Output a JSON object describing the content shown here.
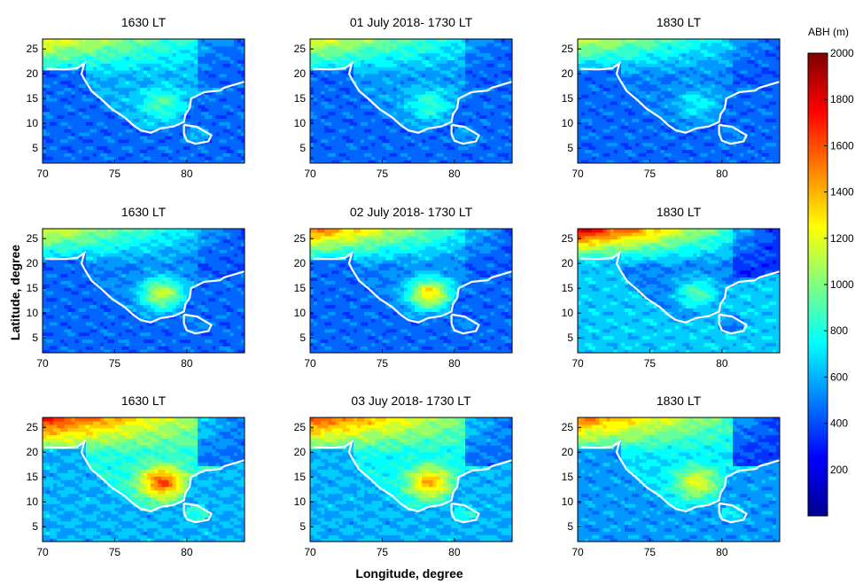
{
  "figure": {
    "xlabel": "Longitude, degree",
    "ylabel": "Latitude, degree"
  },
  "colorbar": {
    "label": "ABH (m)",
    "min": 0,
    "max": 2000,
    "colormap": "jet",
    "ticks": [
      200,
      400,
      600,
      800,
      1000,
      1200,
      1400,
      1600,
      1800,
      2000
    ]
  },
  "chart_data": [
    {
      "type": "heatmap",
      "title": "1630 LT",
      "xlim": [
        70,
        84
      ],
      "ylim": [
        2,
        27
      ],
      "xticks": [
        70,
        75,
        80
      ],
      "yticks": [
        5,
        10,
        15,
        20,
        25
      ],
      "field": {
        "sea": 450,
        "land": 600,
        "north_high": 1250,
        "southern_peninsula": 900,
        "east_interior": 400
      }
    },
    {
      "type": "heatmap",
      "title": "01 July 2018- 1730 LT",
      "xlim": [
        70,
        84
      ],
      "ylim": [
        2,
        27
      ],
      "xticks": [
        70,
        75,
        80
      ],
      "yticks": [
        5,
        10,
        15,
        20,
        25
      ],
      "field": {
        "sea": 450,
        "land": 550,
        "north_high": 1200,
        "southern_peninsula": 850,
        "east_interior": 400
      }
    },
    {
      "type": "heatmap",
      "title": "1830 LT",
      "xlim": [
        70,
        84
      ],
      "ylim": [
        2,
        27
      ],
      "xticks": [
        70,
        75,
        80
      ],
      "yticks": [
        5,
        10,
        15,
        20,
        25
      ],
      "field": {
        "sea": 450,
        "land": 500,
        "north_high": 1150,
        "southern_peninsula": 750,
        "east_interior": 400
      }
    },
    {
      "type": "heatmap",
      "title": "1630 LT",
      "xlim": [
        70,
        84
      ],
      "ylim": [
        2,
        27
      ],
      "xticks": [
        70,
        75,
        80
      ],
      "yticks": [
        5,
        10,
        15,
        20,
        25
      ],
      "field": {
        "sea": 450,
        "land": 500,
        "north_high": 1200,
        "southern_peninsula": 1150,
        "east_interior": 400
      }
    },
    {
      "type": "heatmap",
      "title": "02 July 2018- 1730 LT",
      "xlim": [
        70,
        84
      ],
      "ylim": [
        2,
        27
      ],
      "xticks": [
        70,
        75,
        80
      ],
      "yticks": [
        5,
        10,
        15,
        20,
        25
      ],
      "field": {
        "sea": 450,
        "land": 500,
        "north_high": 1500,
        "southern_peninsula": 1300,
        "east_interior": 400
      }
    },
    {
      "type": "heatmap",
      "title": "1830 LT",
      "xlim": [
        70,
        84
      ],
      "ylim": [
        2,
        27
      ],
      "xticks": [
        70,
        75,
        80
      ],
      "yticks": [
        5,
        10,
        15,
        20,
        25
      ],
      "field": {
        "sea": 650,
        "land": 500,
        "north_high": 1800,
        "southern_peninsula": 900,
        "east_interior": 300
      }
    },
    {
      "type": "heatmap",
      "title": "1630 LT",
      "xlim": [
        70,
        84
      ],
      "ylim": [
        2,
        27
      ],
      "xticks": [
        70,
        75,
        80
      ],
      "yticks": [
        5,
        10,
        15,
        20,
        25
      ],
      "field": {
        "sea": 600,
        "land": 800,
        "north_high": 1700,
        "southern_peninsula": 1600,
        "east_interior": 400
      }
    },
    {
      "type": "heatmap",
      "title": "03 Juy 2018- 1730 LT",
      "xlim": [
        70,
        84
      ],
      "ylim": [
        2,
        27
      ],
      "xticks": [
        70,
        75,
        80
      ],
      "yticks": [
        5,
        10,
        15,
        20,
        25
      ],
      "field": {
        "sea": 600,
        "land": 750,
        "north_high": 1600,
        "southern_peninsula": 1400,
        "east_interior": 400
      }
    },
    {
      "type": "heatmap",
      "title": "1830 LT",
      "xlim": [
        70,
        84
      ],
      "ylim": [
        2,
        27
      ],
      "xticks": [
        70,
        75,
        80
      ],
      "yticks": [
        5,
        10,
        15,
        20,
        25
      ],
      "field": {
        "sea": 550,
        "land": 700,
        "north_high": 1500,
        "southern_peninsula": 1200,
        "east_interior": 300
      }
    }
  ]
}
